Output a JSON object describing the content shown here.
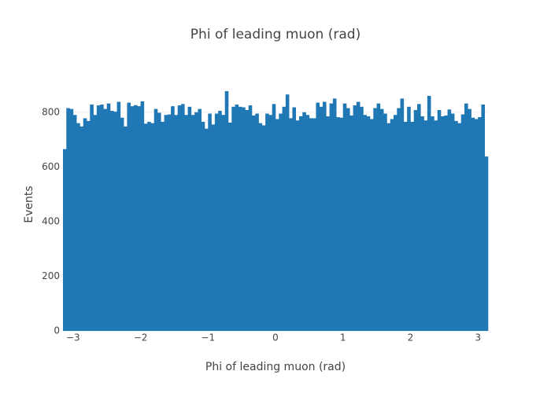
{
  "chart_data": {
    "type": "histogram",
    "title": "Phi of leading muon (rad)",
    "x_label": "Phi of leading muon (rad)",
    "y_label": "Events",
    "color": "#1f77b4",
    "bins": [
      -3.15,
      -3.1,
      -3.05,
      -3,
      -2.95,
      -2.9,
      -2.85,
      -2.8,
      -2.75,
      -2.7,
      -2.65,
      -2.6,
      -2.55,
      -2.5,
      -2.45,
      -2.4,
      -2.35,
      -2.3,
      -2.25,
      -2.2,
      -2.15,
      -2.1,
      -2.05,
      -2,
      -1.95,
      -1.9,
      -1.85,
      -1.8,
      -1.75,
      -1.7,
      -1.65,
      -1.6,
      -1.55,
      -1.5,
      -1.45,
      -1.4,
      -1.35,
      -1.3,
      -1.25,
      -1.2,
      -1.15,
      -1.1,
      -1.05,
      -1,
      -0.95,
      -0.9,
      -0.85,
      -0.8,
      -0.75,
      -0.7,
      -0.65,
      -0.6,
      -0.55,
      -0.5,
      -0.45,
      -0.4,
      -0.35,
      -0.3,
      -0.25,
      -0.2,
      -0.15,
      -0.1,
      -0.05,
      0,
      0.05,
      0.1,
      0.15,
      0.2,
      0.25,
      0.3,
      0.35,
      0.4,
      0.45,
      0.5,
      0.55,
      0.6,
      0.65,
      0.7,
      0.75,
      0.8,
      0.85,
      0.9,
      0.95,
      1,
      1.05,
      1.1,
      1.15,
      1.2,
      1.25,
      1.3,
      1.35,
      1.4,
      1.45,
      1.5,
      1.55,
      1.6,
      1.65,
      1.7,
      1.75,
      1.8,
      1.85,
      1.9,
      1.95,
      2,
      2.05,
      2.1,
      2.15,
      2.2,
      2.25,
      2.3,
      2.35,
      2.4,
      2.45,
      2.5,
      2.55,
      2.6,
      2.65,
      2.7,
      2.75,
      2.8,
      2.85,
      2.9,
      2.95,
      3,
      3.05,
      3.1,
      3.15
    ],
    "values": [
      665,
      815,
      812,
      790,
      760,
      748,
      778,
      768,
      828,
      790,
      825,
      828,
      812,
      832,
      805,
      802,
      838,
      780,
      748,
      835,
      822,
      826,
      822,
      840,
      758,
      765,
      760,
      812,
      798,
      765,
      790,
      792,
      822,
      790,
      825,
      830,
      790,
      820,
      790,
      800,
      812,
      765,
      740,
      795,
      755,
      795,
      805,
      790,
      877,
      762,
      820,
      828,
      820,
      818,
      808,
      825,
      788,
      795,
      760,
      752,
      795,
      790,
      830,
      775,
      795,
      820,
      865,
      778,
      818,
      770,
      785,
      800,
      790,
      778,
      778,
      835,
      820,
      838,
      785,
      832,
      850,
      782,
      780,
      832,
      815,
      788,
      825,
      838,
      820,
      790,
      785,
      775,
      815,
      832,
      812,
      795,
      760,
      775,
      790,
      815,
      850,
      765,
      820,
      765,
      808,
      830,
      785,
      770,
      860,
      785,
      770,
      808,
      785,
      788,
      810,
      795,
      768,
      760,
      792,
      832,
      812,
      780,
      775,
      782,
      828,
      638
    ],
    "xlim": [
      -3.15,
      3.15
    ],
    "xticks": [
      {
        "value": -3,
        "label": "−3"
      },
      {
        "value": -2,
        "label": "−2"
      },
      {
        "value": -1,
        "label": "−1"
      },
      0,
      1,
      2,
      3
    ],
    "ylim": [
      0,
      923
    ],
    "yticks": [
      0,
      200,
      400,
      600,
      800
    ],
    "grid": true
  }
}
